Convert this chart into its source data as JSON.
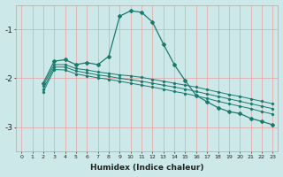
{
  "xlabel": "Humidex (Indice chaleur)",
  "background_color": "#cce8e8",
  "grid_color": "#e8a0a0",
  "line_color": "#1a7a6e",
  "spine_color": "#aaaaaa",
  "xlim": [
    -0.5,
    23.5
  ],
  "ylim": [
    -3.5,
    -0.5
  ],
  "yticks": [
    -3,
    -2,
    -1
  ],
  "xticks": [
    0,
    1,
    2,
    3,
    4,
    5,
    6,
    7,
    8,
    9,
    10,
    11,
    12,
    13,
    14,
    15,
    16,
    17,
    18,
    19,
    20,
    21,
    22,
    23
  ],
  "curve1_x": [
    2,
    3,
    4,
    5,
    6,
    7,
    8,
    9,
    10,
    11,
    12,
    13,
    14,
    15,
    16,
    17,
    18,
    19,
    20,
    21,
    22,
    23
  ],
  "curve1_y": [
    -2.1,
    -1.65,
    -1.62,
    -1.72,
    -1.68,
    -1.72,
    -1.55,
    -0.73,
    -0.62,
    -0.65,
    -0.85,
    -1.3,
    -1.72,
    -2.05,
    -2.35,
    -2.48,
    -2.6,
    -2.68,
    -2.72,
    -2.82,
    -2.88,
    -2.95
  ],
  "curve2_x": [
    2,
    3,
    4,
    5,
    6,
    7,
    8,
    9,
    10,
    11,
    12,
    13,
    14,
    15,
    16,
    17,
    18,
    19,
    20,
    21,
    22,
    23
  ],
  "curve2_y": [
    -2.15,
    -1.72,
    -1.72,
    -1.8,
    -1.83,
    -1.87,
    -1.9,
    -1.93,
    -1.95,
    -1.98,
    -2.02,
    -2.06,
    -2.1,
    -2.14,
    -2.18,
    -2.23,
    -2.28,
    -2.33,
    -2.37,
    -2.42,
    -2.47,
    -2.52
  ],
  "curve3_x": [
    2,
    3,
    4,
    5,
    6,
    7,
    8,
    9,
    10,
    11,
    12,
    13,
    14,
    15,
    16,
    17,
    18,
    19,
    20,
    21,
    22,
    23
  ],
  "curve3_y": [
    -2.22,
    -1.77,
    -1.77,
    -1.85,
    -1.89,
    -1.93,
    -1.96,
    -2.0,
    -2.03,
    -2.06,
    -2.1,
    -2.14,
    -2.18,
    -2.22,
    -2.27,
    -2.32,
    -2.37,
    -2.42,
    -2.47,
    -2.52,
    -2.57,
    -2.62
  ],
  "curve4_x": [
    2,
    3,
    4,
    5,
    6,
    7,
    8,
    9,
    10,
    11,
    12,
    13,
    14,
    15,
    16,
    17,
    18,
    19,
    20,
    21,
    22,
    23
  ],
  "curve4_y": [
    -2.28,
    -1.82,
    -1.83,
    -1.91,
    -1.95,
    -1.99,
    -2.02,
    -2.06,
    -2.1,
    -2.14,
    -2.18,
    -2.22,
    -2.27,
    -2.31,
    -2.36,
    -2.41,
    -2.47,
    -2.52,
    -2.57,
    -2.62,
    -2.68,
    -2.73
  ]
}
